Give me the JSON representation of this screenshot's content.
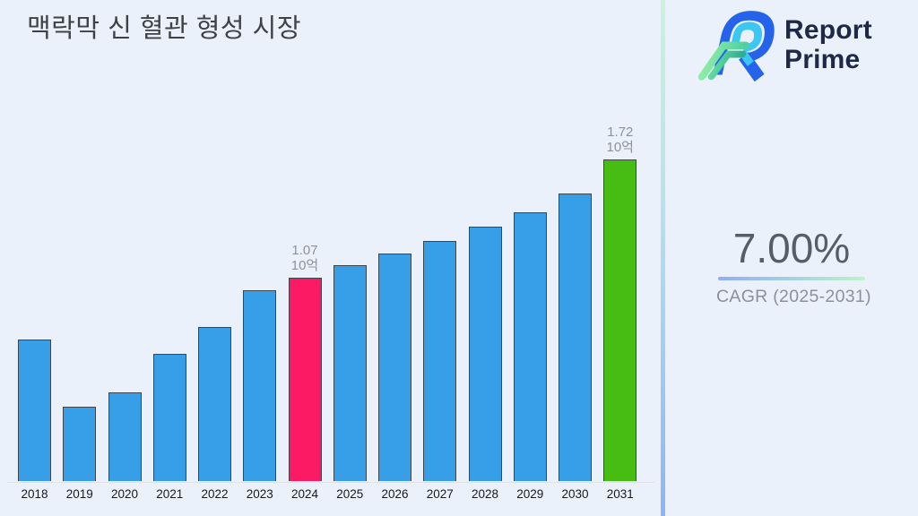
{
  "header": {
    "title": "맥락막 신 혈관 형성 시장"
  },
  "brand": {
    "name_line1": "Report",
    "name_line2": "Prime"
  },
  "cagr": {
    "value": "7.00%",
    "label": "CAGR (2025-2031)"
  },
  "chart_data": {
    "type": "bar",
    "title": "맥락막 신 혈관 형성 시장",
    "xlabel": "",
    "ylabel": "",
    "unit_label": "10억",
    "categories": [
      "2018",
      "2019",
      "2020",
      "2021",
      "2022",
      "2023",
      "2024",
      "2025",
      "2026",
      "2027",
      "2028",
      "2029",
      "2030",
      "2031"
    ],
    "values": [
      0.73,
      0.36,
      0.44,
      0.65,
      0.8,
      1.0,
      1.07,
      1.14,
      1.2,
      1.27,
      1.35,
      1.43,
      1.53,
      1.72
    ],
    "ylim": [
      0,
      1.9
    ],
    "grid": false,
    "legend": false,
    "annotations": [
      {
        "category": "2024",
        "lines": [
          "1.07",
          "10억"
        ]
      },
      {
        "category": "2031",
        "lines": [
          "1.72",
          "10억"
        ]
      }
    ],
    "colors": {
      "default": "#379fe8",
      "highlights": {
        "2024": "#fb1a63",
        "2031": "#47bd13"
      },
      "label": "#8d9298",
      "axis": "#dde2ec"
    }
  }
}
